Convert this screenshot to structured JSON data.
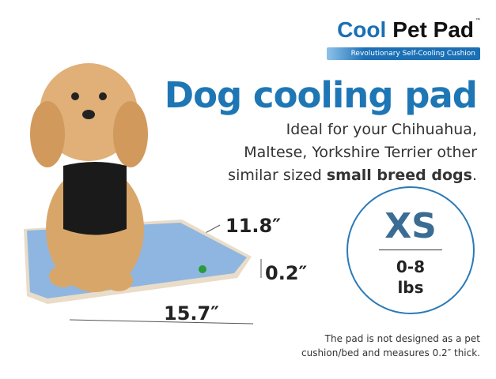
{
  "logo": {
    "brand_part1": "Cool",
    "brand_part2": "Pet Pad",
    "trademark": "™",
    "tagline": "Revolutionary Self-Cooling Cushion"
  },
  "headline": "Dog cooling pad",
  "description": {
    "line1": "Ideal for your Chihuahua,",
    "line2": "Maltese, Yorkshire Terrier other",
    "line3_prefix": "similar sized ",
    "line3_bold": "small breed dogs",
    "line3_suffix": "."
  },
  "size_badge": {
    "size": "XS",
    "weight_range": "0-8",
    "weight_unit": "lbs"
  },
  "dimensions": {
    "width": "11.8″",
    "thickness": "0.2″",
    "length": "15.7″"
  },
  "footnote": {
    "line1": "The pad is not designed as a pet",
    "line2": "cushion/bed and measures 0.2″ thick."
  },
  "colors": {
    "brand_blue": "#1e76b4",
    "pad_blue": "#8fb6e0",
    "size_text": "#3a6c94"
  }
}
